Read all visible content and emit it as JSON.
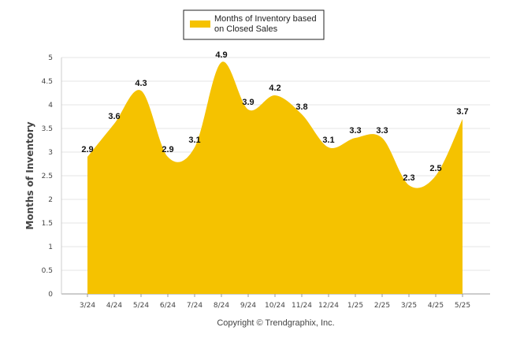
{
  "chart_data": {
    "type": "area",
    "categories": [
      "3/24",
      "4/24",
      "5/24",
      "6/24",
      "7/24",
      "8/24",
      "9/24",
      "10/24",
      "11/24",
      "12/24",
      "1/25",
      "2/25",
      "3/25",
      "4/25",
      "5/25"
    ],
    "series": [
      {
        "name": "Months of Inventory based on Closed Sales",
        "values": [
          2.9,
          3.6,
          4.3,
          2.9,
          3.1,
          4.9,
          3.9,
          4.2,
          3.8,
          3.1,
          3.3,
          3.3,
          2.3,
          2.5,
          3.7
        ],
        "color": "#F5C200"
      }
    ],
    "data_labels": [
      "2.9",
      "3.6",
      "4.3",
      "2.9",
      "3.1",
      "4.9",
      "3.9",
      "4.2",
      "3.8",
      "3.1",
      "3.3",
      "3.3",
      "2.3",
      "2.5",
      "3.7"
    ],
    "ylabel": "Months of Inventory",
    "xlabel": "",
    "ylim": [
      0,
      5
    ],
    "yticks": [
      "0",
      "0.5",
      "1",
      "1.5",
      "2",
      "2.5",
      "3",
      "3.5",
      "4",
      "4.5",
      "5"
    ],
    "grid": true,
    "legend_position": "top-center"
  },
  "legend": {
    "line1": "Months of Inventory based",
    "line2": "on Closed Sales"
  },
  "footer": {
    "copyright": "Copyright © Trendgraphix, Inc."
  }
}
